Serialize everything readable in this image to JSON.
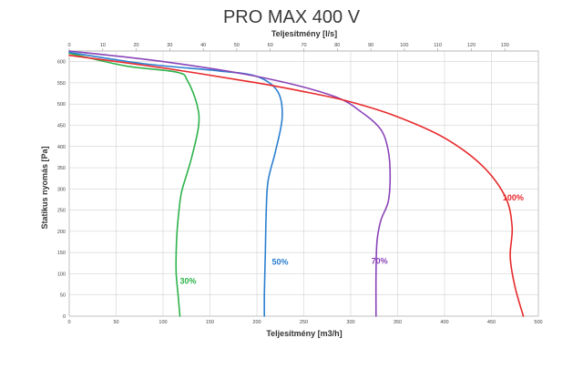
{
  "chart_data": {
    "type": "line",
    "title": "PRO MAX 400 V",
    "xlabel": "Teljesítmény [m3/h]",
    "x2label": "Teljesítmény [l/s]",
    "ylabel": "Statikus nyomás [Pa]",
    "xlim": [
      0,
      500
    ],
    "x2lim": [
      0,
      140
    ],
    "ylim": [
      0,
      625
    ],
    "x_ticks": [
      0,
      50,
      100,
      150,
      200,
      250,
      300,
      350,
      400,
      450,
      500
    ],
    "x2_ticks": [
      0,
      10,
      20,
      30,
      40,
      50,
      60,
      70,
      80,
      90,
      100,
      110,
      120,
      130
    ],
    "y_ticks": [
      0,
      50,
      100,
      150,
      200,
      250,
      300,
      350,
      400,
      450,
      500,
      550,
      600
    ],
    "grid": true,
    "series": [
      {
        "name": "30%",
        "color": "#2db34a",
        "points": [
          [
            0,
            620
          ],
          [
            60,
            590
          ],
          [
            115,
            575
          ],
          [
            126,
            555
          ],
          [
            136,
            500
          ],
          [
            138,
            450
          ],
          [
            130,
            370
          ],
          [
            120,
            295
          ],
          [
            117,
            250
          ],
          [
            115,
            200
          ],
          [
            114,
            150
          ],
          [
            114,
            100
          ],
          [
            116,
            50
          ],
          [
            118,
            0
          ]
        ]
      },
      {
        "name": "50%",
        "color": "#2b7fd0",
        "points": [
          [
            0,
            622
          ],
          [
            80,
            595
          ],
          [
            160,
            578
          ],
          [
            200,
            565
          ],
          [
            222,
            530
          ],
          [
            227,
            470
          ],
          [
            220,
            390
          ],
          [
            212,
            320
          ],
          [
            210,
            250
          ],
          [
            209,
            150
          ],
          [
            208,
            50
          ],
          [
            208,
            0
          ]
        ]
      },
      {
        "name": "70%",
        "color": "#8a44b8",
        "points": [
          [
            0,
            625
          ],
          [
            100,
            600
          ],
          [
            200,
            565
          ],
          [
            280,
            520
          ],
          [
            312,
            480
          ],
          [
            332,
            440
          ],
          [
            340,
            390
          ],
          [
            342,
            330
          ],
          [
            340,
            270
          ],
          [
            332,
            225
          ],
          [
            328,
            175
          ],
          [
            327,
            100
          ],
          [
            327,
            0
          ]
        ]
      },
      {
        "name": "100%",
        "color": "#e8292b",
        "points": [
          [
            0,
            615
          ],
          [
            100,
            585
          ],
          [
            200,
            550
          ],
          [
            260,
            525
          ],
          [
            300,
            505
          ],
          [
            350,
            470
          ],
          [
            400,
            420
          ],
          [
            440,
            355
          ],
          [
            465,
            280
          ],
          [
            472,
            210
          ],
          [
            470,
            140
          ],
          [
            475,
            70
          ],
          [
            484,
            0
          ]
        ]
      }
    ],
    "series_label_points": [
      [
        118,
        76
      ],
      [
        216,
        121
      ],
      [
        322,
        124
      ],
      [
        462,
        273
      ]
    ]
  }
}
